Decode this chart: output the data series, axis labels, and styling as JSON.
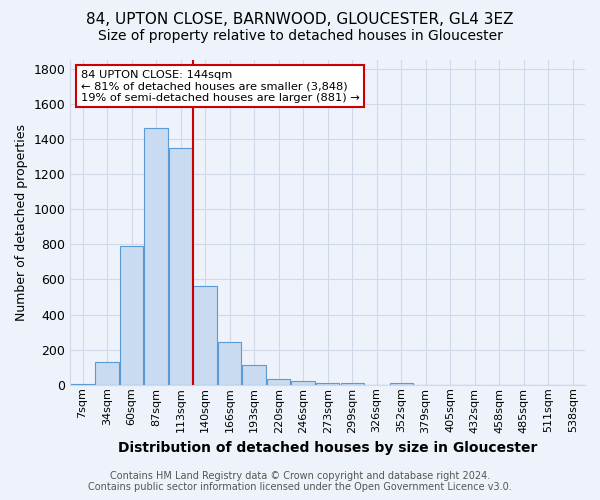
{
  "title1": "84, UPTON CLOSE, BARNWOOD, GLOUCESTER, GL4 3EZ",
  "title2": "Size of property relative to detached houses in Gloucester",
  "xlabel": "Distribution of detached houses by size in Gloucester",
  "ylabel": "Number of detached properties",
  "footer1": "Contains HM Land Registry data © Crown copyright and database right 2024.",
  "footer2": "Contains public sector information licensed under the Open Government Licence v3.0.",
  "annotation_line1": "84 UPTON CLOSE: 144sqm",
  "annotation_line2": "← 81% of detached houses are smaller (3,848)",
  "annotation_line3": "19% of semi-detached houses are larger (881) →",
  "bar_labels": [
    "7sqm",
    "34sqm",
    "60sqm",
    "87sqm",
    "113sqm",
    "140sqm",
    "166sqm",
    "193sqm",
    "220sqm",
    "246sqm",
    "273sqm",
    "299sqm",
    "326sqm",
    "352sqm",
    "379sqm",
    "405sqm",
    "432sqm",
    "458sqm",
    "485sqm",
    "511sqm",
    "538sqm"
  ],
  "bar_values": [
    5,
    130,
    790,
    1460,
    1350,
    560,
    245,
    110,
    30,
    20,
    10,
    10,
    0,
    10,
    0,
    0,
    0,
    0,
    0,
    0,
    0
  ],
  "bar_color": "#c8dbf0",
  "bar_edge_color": "#5b9bd5",
  "red_line_x": 4.5,
  "red_line_color": "#cc0000",
  "annotation_box_color": "#cc0000",
  "ylim": [
    0,
    1850
  ],
  "background_color": "#eef2fa",
  "plot_background": "#eef2fa",
  "grid_color": "#d0d8ea",
  "title1_fontsize": 11,
  "title2_fontsize": 10,
  "xlabel_fontsize": 10,
  "ylabel_fontsize": 9,
  "tick_fontsize": 8,
  "footer_fontsize": 7
}
